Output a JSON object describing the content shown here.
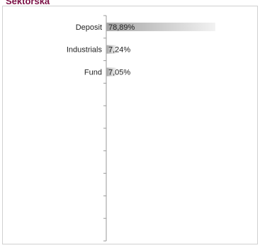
{
  "chart_data": {
    "type": "bar",
    "orientation": "horizontal",
    "title": "Sektorska",
    "categories": [
      "Deposit",
      "Industrials",
      "Fund",
      null,
      null,
      null,
      null,
      null,
      null,
      null
    ],
    "values": [
      78.89,
      7.24,
      7.05,
      null,
      null,
      null,
      null,
      null,
      null,
      null
    ],
    "value_labels": [
      "78,89%",
      "7,24%",
      "7,05%",
      null,
      null,
      null,
      null,
      null,
      null,
      null
    ],
    "color": "#a6a6a6",
    "xlim": [
      0,
      100
    ]
  }
}
